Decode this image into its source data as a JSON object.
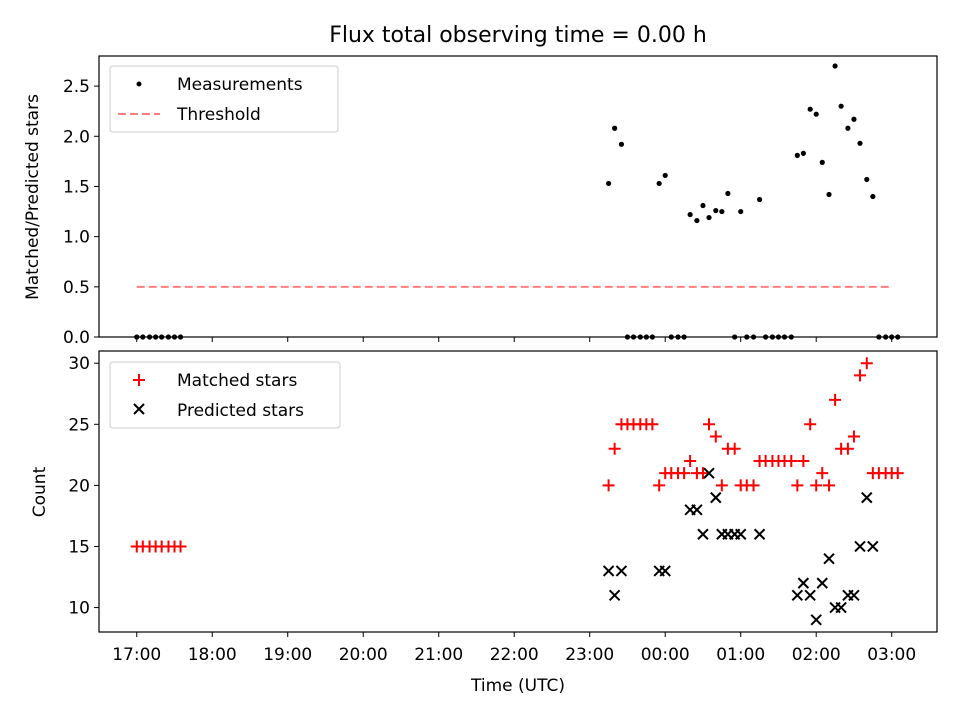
{
  "chart_data": [
    {
      "type": "scatter",
      "title": "Flux total observing time = 0.00 h",
      "ylabel": "Matched/Predicted stars",
      "xlabel": "",
      "ylim": [
        0,
        2.8
      ],
      "yticks": [
        "0.0",
        "0.5",
        "1.0",
        "1.5",
        "2.0",
        "2.5"
      ],
      "legend": "top-left",
      "legend_entries": [
        "Measurements",
        "Threshold"
      ],
      "colors": {
        "measurements": "#000000",
        "threshold": "#ff7f7f"
      },
      "threshold": {
        "value": 0.5,
        "x_start": 17.0,
        "x_end": 27.0
      },
      "series": [
        {
          "name": "Measurements",
          "points": [
            [
              17.0,
              0
            ],
            [
              17.08,
              0
            ],
            [
              17.17,
              0
            ],
            [
              17.25,
              0
            ],
            [
              17.33,
              0
            ],
            [
              17.42,
              0
            ],
            [
              17.5,
              0
            ],
            [
              17.58,
              0
            ],
            [
              23.25,
              1.53
            ],
            [
              23.33,
              2.08
            ],
            [
              23.42,
              1.92
            ],
            [
              23.5,
              0
            ],
            [
              23.58,
              0
            ],
            [
              23.67,
              0
            ],
            [
              23.75,
              0
            ],
            [
              23.83,
              0
            ],
            [
              23.92,
              1.53
            ],
            [
              24.0,
              1.61
            ],
            [
              24.08,
              0
            ],
            [
              24.17,
              0
            ],
            [
              24.25,
              0
            ],
            [
              24.33,
              1.22
            ],
            [
              24.42,
              1.16
            ],
            [
              24.5,
              1.31
            ],
            [
              24.58,
              1.19
            ],
            [
              24.67,
              1.26
            ],
            [
              24.75,
              1.25
            ],
            [
              24.83,
              1.43
            ],
            [
              24.92,
              0
            ],
            [
              25.0,
              1.25
            ],
            [
              25.08,
              0
            ],
            [
              25.17,
              0
            ],
            [
              25.25,
              1.37
            ],
            [
              25.33,
              0
            ],
            [
              25.42,
              0
            ],
            [
              25.5,
              0
            ],
            [
              25.58,
              0
            ],
            [
              25.67,
              0
            ],
            [
              25.75,
              1.81
            ],
            [
              25.83,
              1.83
            ],
            [
              25.92,
              2.27
            ],
            [
              26.0,
              2.22
            ],
            [
              26.08,
              1.74
            ],
            [
              26.17,
              1.42
            ],
            [
              26.25,
              2.7
            ],
            [
              26.33,
              2.3
            ],
            [
              26.42,
              2.08
            ],
            [
              26.5,
              2.17
            ],
            [
              26.58,
              1.93
            ],
            [
              26.67,
              1.57
            ],
            [
              26.75,
              1.4
            ],
            [
              26.83,
              0
            ],
            [
              26.92,
              0
            ],
            [
              27.0,
              0
            ],
            [
              27.08,
              0
            ]
          ]
        }
      ]
    },
    {
      "type": "scatter",
      "title": "",
      "ylabel": "Count",
      "xlabel": "Time (UTC)",
      "xlim": [
        16.5,
        27.6
      ],
      "ylim": [
        8,
        31
      ],
      "yticks": [
        "10",
        "15",
        "20",
        "25",
        "30"
      ],
      "xticks": [
        "17:00",
        "18:00",
        "19:00",
        "20:00",
        "21:00",
        "22:00",
        "23:00",
        "00:00",
        "01:00",
        "02:00",
        "03:00"
      ],
      "legend": "top-left",
      "legend_entries": [
        "Matched stars",
        "Predicted stars"
      ],
      "colors": {
        "matched": "#ff0000",
        "predicted": "#000000"
      },
      "series": [
        {
          "name": "Matched stars",
          "points": [
            [
              17.0,
              15
            ],
            [
              17.08,
              15
            ],
            [
              17.17,
              15
            ],
            [
              17.25,
              15
            ],
            [
              17.33,
              15
            ],
            [
              17.42,
              15
            ],
            [
              17.5,
              15
            ],
            [
              17.58,
              15
            ],
            [
              23.25,
              20
            ],
            [
              23.33,
              23
            ],
            [
              23.42,
              25
            ],
            [
              23.5,
              25
            ],
            [
              23.58,
              25
            ],
            [
              23.67,
              25
            ],
            [
              23.75,
              25
            ],
            [
              23.83,
              25
            ],
            [
              23.92,
              20
            ],
            [
              24.0,
              21
            ],
            [
              24.08,
              21
            ],
            [
              24.17,
              21
            ],
            [
              24.25,
              21
            ],
            [
              24.33,
              22
            ],
            [
              24.42,
              21
            ],
            [
              24.5,
              21
            ],
            [
              24.58,
              25
            ],
            [
              24.67,
              24
            ],
            [
              24.75,
              20
            ],
            [
              24.83,
              23
            ],
            [
              24.92,
              23
            ],
            [
              25.0,
              20
            ],
            [
              25.08,
              20
            ],
            [
              25.17,
              20
            ],
            [
              25.25,
              22
            ],
            [
              25.33,
              22
            ],
            [
              25.42,
              22
            ],
            [
              25.5,
              22
            ],
            [
              25.58,
              22
            ],
            [
              25.67,
              22
            ],
            [
              25.75,
              20
            ],
            [
              25.83,
              22
            ],
            [
              25.92,
              25
            ],
            [
              26.0,
              20
            ],
            [
              26.08,
              21
            ],
            [
              26.17,
              20
            ],
            [
              26.25,
              27
            ],
            [
              26.33,
              23
            ],
            [
              26.42,
              23
            ],
            [
              26.5,
              24
            ],
            [
              26.58,
              29
            ],
            [
              26.67,
              30
            ],
            [
              26.75,
              21
            ],
            [
              26.83,
              21
            ],
            [
              26.92,
              21
            ],
            [
              27.0,
              21
            ],
            [
              27.08,
              21
            ]
          ]
        },
        {
          "name": "Predicted stars",
          "points": [
            [
              23.25,
              13
            ],
            [
              23.33,
              11
            ],
            [
              23.42,
              13
            ],
            [
              23.92,
              13
            ],
            [
              24.0,
              13
            ],
            [
              24.33,
              18
            ],
            [
              24.42,
              18
            ],
            [
              24.5,
              16
            ],
            [
              24.58,
              21
            ],
            [
              24.67,
              19
            ],
            [
              24.75,
              16
            ],
            [
              24.83,
              16
            ],
            [
              24.92,
              16
            ],
            [
              25.0,
              16
            ],
            [
              25.25,
              16
            ],
            [
              25.75,
              11
            ],
            [
              25.83,
              12
            ],
            [
              25.92,
              11
            ],
            [
              26.0,
              9
            ],
            [
              26.08,
              12
            ],
            [
              26.17,
              14
            ],
            [
              26.25,
              10
            ],
            [
              26.33,
              10
            ],
            [
              26.42,
              11
            ],
            [
              26.5,
              11
            ],
            [
              26.58,
              15
            ],
            [
              26.67,
              19
            ],
            [
              26.75,
              15
            ]
          ]
        }
      ]
    }
  ]
}
